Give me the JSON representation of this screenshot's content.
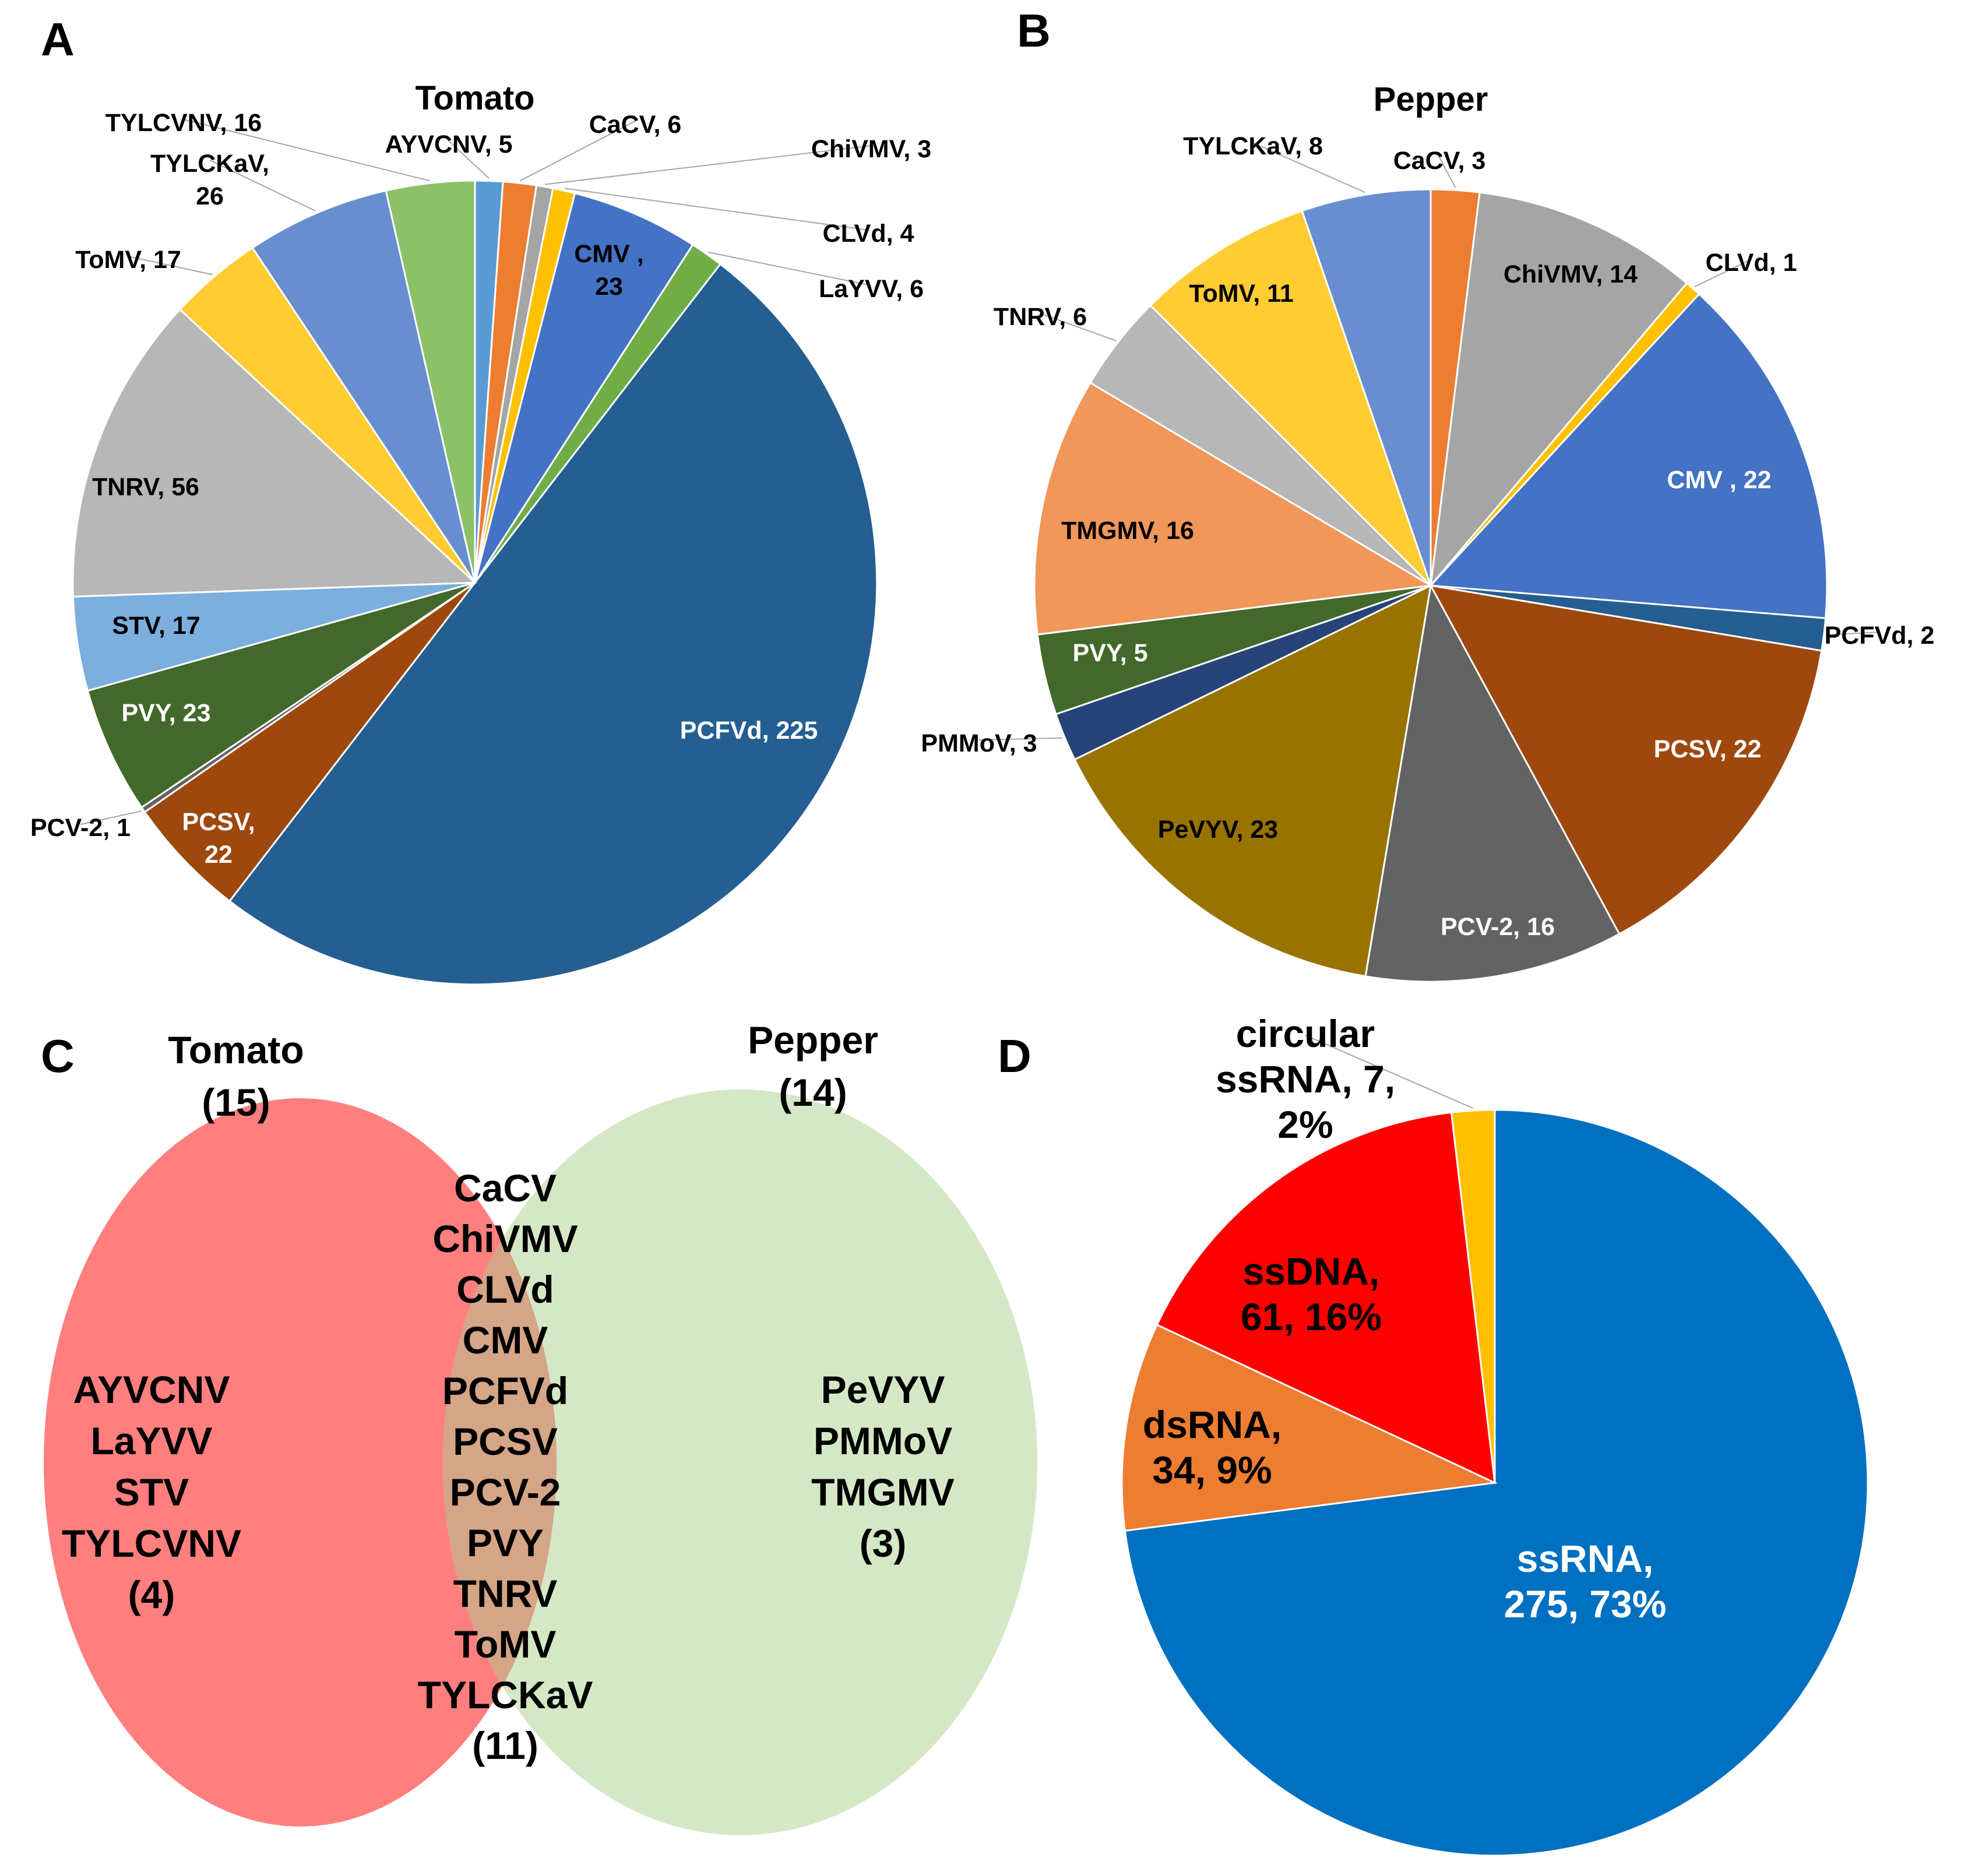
{
  "panels": {
    "a": "A",
    "b": "B",
    "c": "C",
    "d": "D"
  },
  "chart_data": [
    {
      "panel": "A",
      "type": "pie",
      "title": "Tomato",
      "slices": [
        {
          "name": "AYVCNV",
          "value": 5,
          "color": "#5B9BD5",
          "label": "AYVCNV, 5",
          "label_color": "#000000"
        },
        {
          "name": "CaCV",
          "value": 6,
          "color": "#ED7D31",
          "label": "CaCV, 6",
          "label_color": "#000000"
        },
        {
          "name": "ChiVMV",
          "value": 3,
          "color": "#A5A5A5",
          "label": "ChiVMV, 3",
          "label_color": "#000000"
        },
        {
          "name": "CLVd",
          "value": 4,
          "color": "#FFC000",
          "label": "CLVd, 4",
          "label_color": "#000000"
        },
        {
          "name": "CMV",
          "value": 23,
          "color": "#4472C4",
          "label": "CMV , 23",
          "label_color": "#000000"
        },
        {
          "name": "LaYVV",
          "value": 6,
          "color": "#70AD47",
          "label": "LaYVV, 6",
          "label_color": "#000000"
        },
        {
          "name": "PCFVd",
          "value": 225,
          "color": "#255E91",
          "label": "PCFVd, 225",
          "label_color": "#FFFFFF"
        },
        {
          "name": "PCSV",
          "value": 22,
          "color": "#9E480E",
          "label": "PCSV, 22",
          "label_color": "#FFFFFF"
        },
        {
          "name": "PCV-2",
          "value": 1,
          "color": "#636363",
          "label": "PCV-2, 1",
          "label_color": "#000000"
        },
        {
          "name": "PVY",
          "value": 23,
          "color": "#43682B",
          "label": "PVY, 23",
          "label_color": "#FFFFFF"
        },
        {
          "name": "STV",
          "value": 17,
          "color": "#7CAFDD",
          "label": "STV, 17",
          "label_color": "#000000"
        },
        {
          "name": "TNRV",
          "value": 56,
          "color": "#B7B7B7",
          "label": "TNRV, 56",
          "label_color": "#000000"
        },
        {
          "name": "ToMV",
          "value": 17,
          "color": "#FFCD33",
          "label": "ToMV, 17",
          "label_color": "#000000"
        },
        {
          "name": "TYLCKaV",
          "value": 26,
          "color": "#698ED0",
          "label": "TYLCKaV, 26",
          "label_color": "#000000"
        },
        {
          "name": "TYLCVNV",
          "value": 16,
          "color": "#8CC168",
          "label": "TYLCVNV, 16",
          "label_color": "#000000"
        }
      ]
    },
    {
      "panel": "B",
      "type": "pie",
      "title": "Pepper",
      "slices": [
        {
          "name": "CaCV",
          "value": 3,
          "color": "#ED7D31",
          "label": "CaCV, 3",
          "label_color": "#000000"
        },
        {
          "name": "ChiVMV",
          "value": 14,
          "color": "#A5A5A5",
          "label": "ChiVMV, 14",
          "label_color": "#000000"
        },
        {
          "name": "CLVd",
          "value": 1,
          "color": "#FFC000",
          "label": "CLVd, 1",
          "label_color": "#000000"
        },
        {
          "name": "CMV",
          "value": 22,
          "color": "#4472C4",
          "label": "CMV , 22",
          "label_color": "#FFFFFF"
        },
        {
          "name": "PCFVd",
          "value": 2,
          "color": "#255E91",
          "label": "PCFVd, 2",
          "label_color": "#000000"
        },
        {
          "name": "PCSV",
          "value": 22,
          "color": "#9E480E",
          "label": "PCSV, 22",
          "label_color": "#FFFFFF"
        },
        {
          "name": "PCV-2",
          "value": 16,
          "color": "#636363",
          "label": "PCV-2, 16",
          "label_color": "#FFFFFF"
        },
        {
          "name": "PeVYV",
          "value": 23,
          "color": "#997300",
          "label": "PeVYV, 23",
          "label_color": "#000000"
        },
        {
          "name": "PMMoV",
          "value": 3,
          "color": "#264478",
          "label": "PMMoV, 3",
          "label_color": "#000000"
        },
        {
          "name": "PVY",
          "value": 5,
          "color": "#43682B",
          "label": "PVY, 5",
          "label_color": "#FFFFFF"
        },
        {
          "name": "TMGMV",
          "value": 16,
          "color": "#F1975A",
          "label": "TMGMV, 16",
          "label_color": "#000000"
        },
        {
          "name": "TNRV",
          "value": 6,
          "color": "#B7B7B7",
          "label": "TNRV, 6",
          "label_color": "#000000"
        },
        {
          "name": "ToMV",
          "value": 11,
          "color": "#FFCD33",
          "label": "ToMV, 11",
          "label_color": "#000000"
        },
        {
          "name": "TYLCKaV",
          "value": 8,
          "color": "#698ED0",
          "label": "TYLCKaV, 8",
          "label_color": "#000000"
        }
      ]
    },
    {
      "panel": "C",
      "type": "venn",
      "sets": [
        {
          "name": "Tomato",
          "count": "(15)",
          "color": "#FF7F7F"
        },
        {
          "name": "Pepper",
          "count": "(14)",
          "color": "#D5E8C6"
        }
      ],
      "overlap_color": "#D4A587",
      "tomato_only": [
        "AYVCNV",
        "LaYVV",
        "STV",
        "TYLCVNV",
        "(4)"
      ],
      "shared": [
        "CaCV",
        "ChiVMV",
        "CLVd",
        "CMV",
        "PCFVd",
        "PCSV",
        "PCV-2",
        "PVY",
        "TNRV",
        "ToMV",
        "TYLCKaV",
        "(11)"
      ],
      "pepper_only": [
        "PeVYV",
        "PMMoV",
        "TMGMV",
        "(3)"
      ]
    },
    {
      "panel": "D",
      "type": "pie",
      "title": "",
      "slices": [
        {
          "name": "ssRNA",
          "value": 275,
          "percent": 73,
          "color": "#0070C0",
          "label": "ssRNA, 275, 73%",
          "label_color": "#FFFFFF"
        },
        {
          "name": "dsRNA",
          "value": 34,
          "percent": 9,
          "color": "#ED7D31",
          "label": "dsRNA, 34, 9%",
          "label_color": "#000000"
        },
        {
          "name": "ssDNA",
          "value": 61,
          "percent": 16,
          "color": "#FF0000",
          "label": "ssDNA, 61, 16%",
          "label_color": "#000000"
        },
        {
          "name": "circular ssRNA",
          "value": 7,
          "percent": 2,
          "color": "#FFC000",
          "label": "circular ssRNA, 7, 2%",
          "label_color": "#000000"
        }
      ]
    }
  ]
}
